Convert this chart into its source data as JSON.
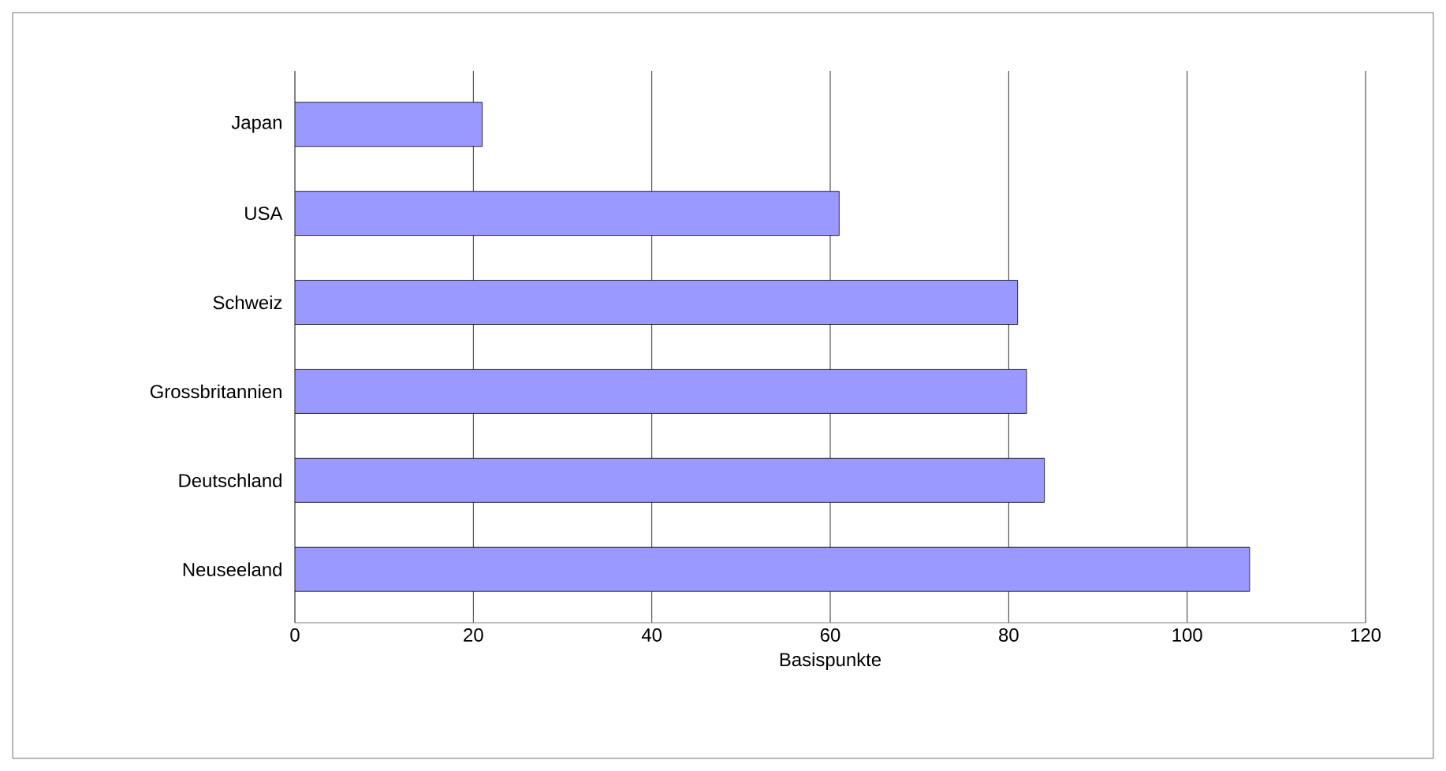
{
  "chart_data": {
    "type": "bar",
    "orientation": "horizontal",
    "xlabel": "Basispunkte",
    "categories": [
      "Japan",
      "USA",
      "Schweiz",
      "Grossbritannien",
      "Deutschland",
      "Neuseeland"
    ],
    "values": [
      21,
      61,
      81,
      82,
      84,
      107
    ],
    "color": "#9999ff",
    "xlim": [
      0,
      120
    ],
    "xticks": [
      0,
      20,
      40,
      60,
      80,
      100,
      120
    ],
    "grid": "x"
  }
}
